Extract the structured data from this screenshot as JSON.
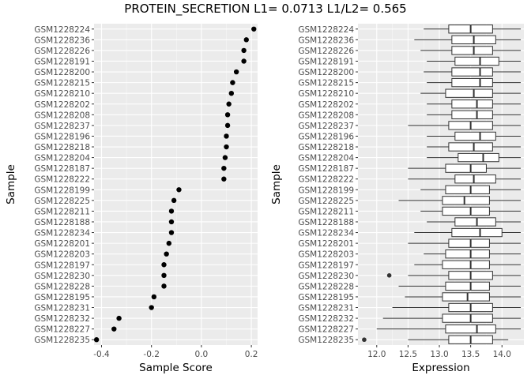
{
  "title": "PROTEIN_SECRETION L1= 0.0713 L1/L2= 0.565",
  "chart_data": [
    {
      "type": "scatter",
      "xlabel": "Sample Score",
      "ylabel": "Sample",
      "xlim": [
        -0.43,
        0.225
      ],
      "xticks": [
        -0.4,
        -0.2,
        0.0,
        0.2
      ],
      "xtick_labels": [
        "-0.4",
        "-0.2",
        "0.0",
        "0.2"
      ],
      "grid": true,
      "categories": [
        "GSM1228224",
        "GSM1228236",
        "GSM1228226",
        "GSM1228191",
        "GSM1228200",
        "GSM1228215",
        "GSM1228210",
        "GSM1228202",
        "GSM1228208",
        "GSM1228237",
        "GSM1228196",
        "GSM1228218",
        "GSM1228204",
        "GSM1228187",
        "GSM1228222",
        "GSM1228199",
        "GSM1228225",
        "GSM1228211",
        "GSM1228188",
        "GSM1228234",
        "GSM1228201",
        "GSM1228203",
        "GSM1228197",
        "GSM1228230",
        "GSM1228228",
        "GSM1228195",
        "GSM1228231",
        "GSM1228232",
        "GSM1228227",
        "GSM1228235"
      ],
      "values": [
        0.21,
        0.18,
        0.17,
        0.17,
        0.14,
        0.125,
        0.12,
        0.11,
        0.105,
        0.105,
        0.1,
        0.1,
        0.095,
        0.09,
        0.09,
        -0.09,
        -0.11,
        -0.12,
        -0.12,
        -0.12,
        -0.13,
        -0.14,
        -0.15,
        -0.15,
        -0.15,
        -0.19,
        -0.2,
        -0.33,
        -0.35,
        -0.42
      ]
    },
    {
      "type": "boxplot",
      "xlabel": "Expression",
      "ylabel": "Sample",
      "xlim": [
        11.7,
        14.35
      ],
      "xticks": [
        12.0,
        12.5,
        13.0,
        13.5,
        14.0
      ],
      "xtick_labels": [
        "12.0",
        "12.5",
        "13.0",
        "13.5",
        "14.0"
      ],
      "grid": true,
      "categories": [
        "GSM1228224",
        "GSM1228236",
        "GSM1228226",
        "GSM1228191",
        "GSM1228200",
        "GSM1228215",
        "GSM1228210",
        "GSM1228202",
        "GSM1228208",
        "GSM1228237",
        "GSM1228196",
        "GSM1228218",
        "GSM1228204",
        "GSM1228187",
        "GSM1228222",
        "GSM1228199",
        "GSM1228225",
        "GSM1228211",
        "GSM1228188",
        "GSM1228234",
        "GSM1228201",
        "GSM1228203",
        "GSM1228197",
        "GSM1228230",
        "GSM1228228",
        "GSM1228195",
        "GSM1228231",
        "GSM1228232",
        "GSM1228227",
        "GSM1228235"
      ],
      "boxes": [
        {
          "min": 12.75,
          "q1": 13.15,
          "median": 13.5,
          "q3": 13.85,
          "max": 14.3
        },
        {
          "min": 12.6,
          "q1": 13.2,
          "median": 13.55,
          "q3": 13.9,
          "max": 14.3
        },
        {
          "min": 12.7,
          "q1": 13.2,
          "median": 13.55,
          "q3": 13.85,
          "max": 14.3
        },
        {
          "min": 12.8,
          "q1": 13.25,
          "median": 13.65,
          "q3": 13.95,
          "max": 14.3
        },
        {
          "min": 12.75,
          "q1": 13.2,
          "median": 13.65,
          "q3": 13.85,
          "max": 14.3
        },
        {
          "min": 12.8,
          "q1": 13.2,
          "median": 13.65,
          "q3": 13.85,
          "max": 14.3
        },
        {
          "min": 12.7,
          "q1": 13.1,
          "median": 13.55,
          "q3": 13.85,
          "max": 14.3
        },
        {
          "min": 12.8,
          "q1": 13.2,
          "median": 13.6,
          "q3": 13.85,
          "max": 14.3
        },
        {
          "min": 12.8,
          "q1": 13.2,
          "median": 13.6,
          "q3": 13.85,
          "max": 14.3
        },
        {
          "min": 12.5,
          "q1": 13.15,
          "median": 13.5,
          "q3": 13.85,
          "max": 14.3
        },
        {
          "min": 12.8,
          "q1": 13.25,
          "median": 13.65,
          "q3": 13.9,
          "max": 14.3
        },
        {
          "min": 12.8,
          "q1": 13.15,
          "median": 13.55,
          "q3": 13.85,
          "max": 14.3
        },
        {
          "min": 12.8,
          "q1": 13.3,
          "median": 13.7,
          "q3": 13.95,
          "max": 14.3
        },
        {
          "min": 12.5,
          "q1": 13.1,
          "median": 13.5,
          "q3": 13.75,
          "max": 14.3
        },
        {
          "min": 12.5,
          "q1": 13.25,
          "median": 13.55,
          "q3": 13.9,
          "max": 14.3
        },
        {
          "min": 12.7,
          "q1": 13.1,
          "median": 13.5,
          "q3": 13.8,
          "max": 14.3
        },
        {
          "min": 12.35,
          "q1": 13.05,
          "median": 13.4,
          "q3": 13.8,
          "max": 14.3
        },
        {
          "min": 12.7,
          "q1": 13.05,
          "median": 13.5,
          "q3": 13.8,
          "max": 14.3
        },
        {
          "min": 12.8,
          "q1": 13.25,
          "median": 13.6,
          "q3": 13.9,
          "max": 14.3
        },
        {
          "min": 12.6,
          "q1": 13.2,
          "median": 13.65,
          "q3": 14.0,
          "max": 14.3
        },
        {
          "min": 12.5,
          "q1": 13.15,
          "median": 13.5,
          "q3": 13.8,
          "max": 14.3
        },
        {
          "min": 12.75,
          "q1": 13.1,
          "median": 13.5,
          "q3": 13.8,
          "max": 14.3
        },
        {
          "min": 12.6,
          "q1": 13.05,
          "median": 13.5,
          "q3": 13.8,
          "max": 14.3
        },
        {
          "min": 12.5,
          "q1": 13.15,
          "median": 13.5,
          "q3": 13.85,
          "max": 14.3,
          "outliers": [
            12.2
          ]
        },
        {
          "min": 12.35,
          "q1": 13.1,
          "median": 13.5,
          "q3": 13.8,
          "max": 14.3
        },
        {
          "min": 12.45,
          "q1": 13.05,
          "median": 13.45,
          "q3": 13.8,
          "max": 14.3
        },
        {
          "min": 12.25,
          "q1": 13.15,
          "median": 13.5,
          "q3": 13.85,
          "max": 14.3
        },
        {
          "min": 12.1,
          "q1": 13.05,
          "median": 13.5,
          "q3": 13.85,
          "max": 14.3
        },
        {
          "min": 12.0,
          "q1": 13.1,
          "median": 13.6,
          "q3": 13.9,
          "max": 14.3
        },
        {
          "min": 12.5,
          "q1": 13.15,
          "median": 13.5,
          "q3": 13.85,
          "max": 14.1,
          "outliers": [
            11.8
          ]
        }
      ]
    }
  ]
}
